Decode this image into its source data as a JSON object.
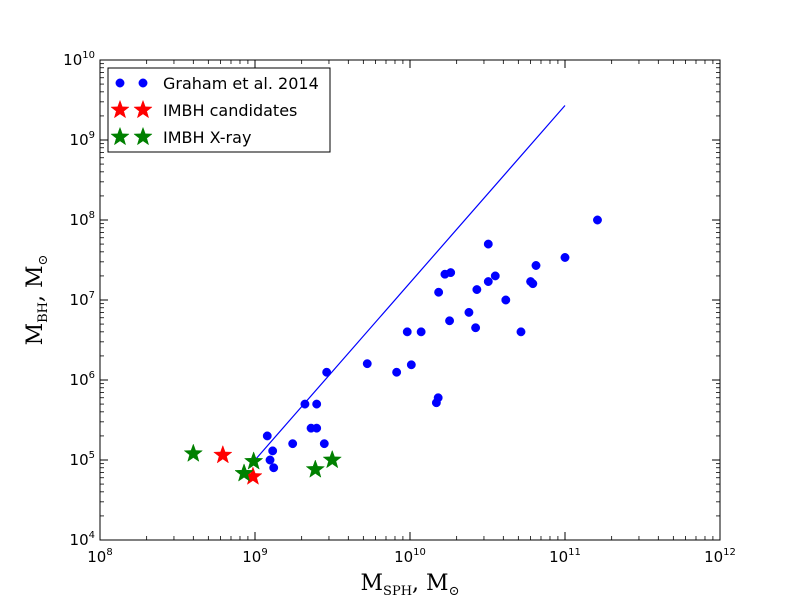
{
  "chart_data": {
    "type": "scatter",
    "xscale": "log",
    "yscale": "log",
    "xlim": [
      100000000,
      1000000000000
    ],
    "ylim": [
      10000,
      10000000000
    ],
    "xlabel": {
      "main": "M",
      "sub": "SPH",
      "rest": ", M",
      "unit_symbol": "⊙"
    },
    "ylabel": {
      "main": "M",
      "sub": "BH",
      "rest": ", M",
      "unit_symbol": "⊙"
    },
    "x_ticks": [
      {
        "value": 100000000,
        "base": "10",
        "exp": "8"
      },
      {
        "value": 1000000000,
        "base": "10",
        "exp": "9"
      },
      {
        "value": 10000000000,
        "base": "10",
        "exp": "10"
      },
      {
        "value": 100000000000,
        "base": "10",
        "exp": "11"
      },
      {
        "value": 1000000000000,
        "base": "10",
        "exp": "12"
      }
    ],
    "y_ticks": [
      {
        "value": 10000,
        "base": "10",
        "exp": "4"
      },
      {
        "value": 100000,
        "base": "10",
        "exp": "5"
      },
      {
        "value": 1000000,
        "base": "10",
        "exp": "6"
      },
      {
        "value": 10000000,
        "base": "10",
        "exp": "7"
      },
      {
        "value": 100000000,
        "base": "10",
        "exp": "8"
      },
      {
        "value": 1000000000,
        "base": "10",
        "exp": "9"
      },
      {
        "value": 10000000000,
        "base": "10",
        "exp": "10"
      }
    ],
    "legend_position": "top-left",
    "series": [
      {
        "name": "Graham et al. 2014",
        "marker": "circle",
        "color": "#0000ff",
        "points": [
          [
            1200000000,
            200000
          ],
          [
            1250000000,
            100000
          ],
          [
            1300000000,
            130000
          ],
          [
            1320000000,
            80000
          ],
          [
            1750000000,
            160000
          ],
          [
            2100000000,
            500000
          ],
          [
            2300000000,
            250000
          ],
          [
            2500000000,
            250000
          ],
          [
            2500000000,
            500000
          ],
          [
            2800000000,
            160000
          ],
          [
            2900000000,
            1250000
          ],
          [
            5300000000,
            1600000
          ],
          [
            8200000000,
            1250000
          ],
          [
            9600000000,
            4000000
          ],
          [
            10200000000,
            1550000
          ],
          [
            11800000000,
            4000000
          ],
          [
            14800000000,
            520000
          ],
          [
            15200000000,
            600000
          ],
          [
            15300000000,
            12500000
          ],
          [
            16800000000,
            21000000
          ],
          [
            18000000000,
            5500000
          ],
          [
            18300000000,
            22000000
          ],
          [
            24000000000,
            7000000
          ],
          [
            26500000000,
            4500000
          ],
          [
            27000000000,
            13500000
          ],
          [
            32000000000,
            17000000
          ],
          [
            32000000000,
            50000000
          ],
          [
            35500000000,
            20000000
          ],
          [
            41500000000,
            10000000
          ],
          [
            52000000000,
            4000000
          ],
          [
            60000000000,
            17000000
          ],
          [
            62000000000,
            16000000
          ],
          [
            65000000000,
            27000000
          ],
          [
            100000000000,
            34000000
          ],
          [
            162000000000,
            100000000
          ]
        ]
      },
      {
        "name": "IMBH candidates",
        "marker": "star",
        "color": "#ff0000",
        "points": [
          [
            620000000,
            115000
          ],
          [
            970000000,
            62000
          ]
        ]
      },
      {
        "name": "IMBH X-ray",
        "marker": "star",
        "color": "#008000",
        "points": [
          [
            400000000,
            120000
          ],
          [
            850000000,
            68000
          ],
          [
            980000000,
            96000
          ],
          [
            2450000000,
            76000
          ],
          [
            3150000000,
            100000
          ]
        ]
      }
    ],
    "fit_line": {
      "color": "#0000ff",
      "points": [
        [
          1000000000,
          100000
        ],
        [
          100000000000,
          2700000000
        ]
      ]
    }
  }
}
